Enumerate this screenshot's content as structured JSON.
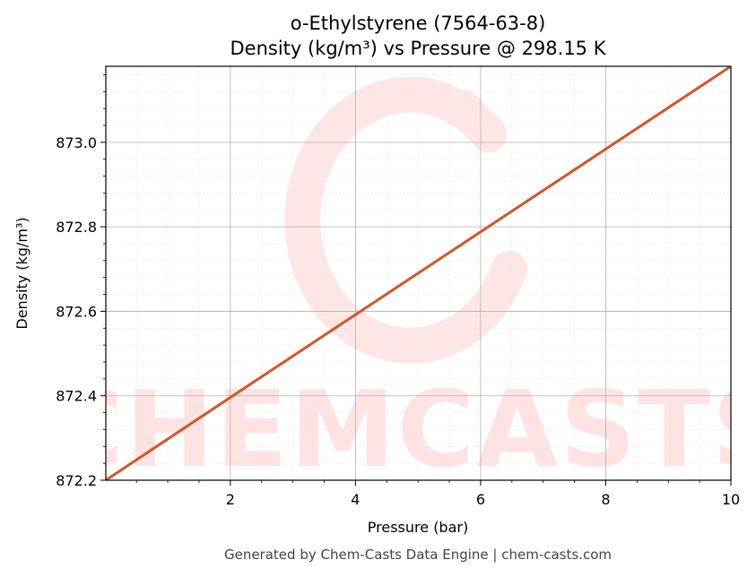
{
  "chart_data": {
    "type": "line",
    "title": "o-Ethylstyrene (7564-63-8)",
    "subtitle": "Density (kg/m³) vs Pressure @ 298.15 K",
    "xlabel": "Pressure (bar)",
    "ylabel": "Density (kg/m³)",
    "xlim": [
      0.01,
      10
    ],
    "ylim": [
      872.2,
      873.18
    ],
    "xticks": [
      2,
      4,
      6,
      8,
      10
    ],
    "xtick_labels": [
      "2",
      "4",
      "6",
      "8",
      "10"
    ],
    "yticks": [
      872.2,
      872.4,
      872.6,
      872.8,
      873.0
    ],
    "ytick_labels": [
      "872.2",
      "872.4",
      "872.6",
      "872.8",
      "873.0"
    ],
    "grid": true,
    "series": [
      {
        "color": "#d4542a",
        "x": [
          0.01,
          2,
          4,
          6,
          8,
          10
        ],
        "y": [
          872.2,
          872.396,
          872.592,
          872.788,
          872.984,
          873.18
        ]
      }
    ]
  },
  "watermark": {
    "text": "CHEMCASTS",
    "color": "#ffe3e3"
  },
  "footer": "Generated by Chem-Casts Data Engine | chem-casts.com"
}
